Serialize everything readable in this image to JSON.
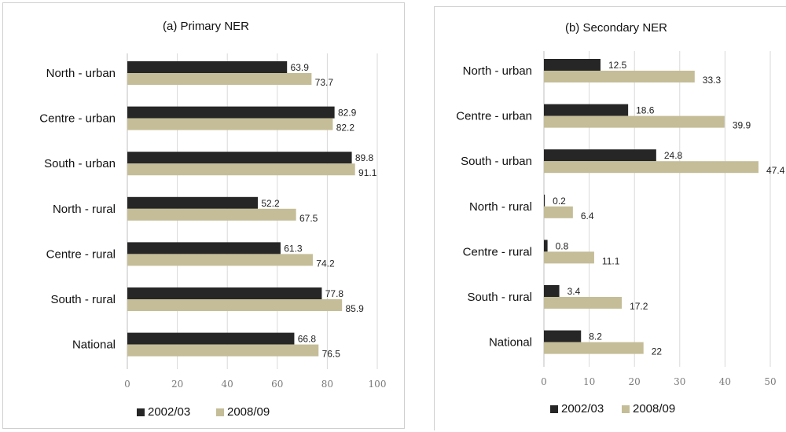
{
  "chart_data": [
    {
      "type": "bar",
      "orientation": "horizontal",
      "title": "(a) Primary NER",
      "categories": [
        "North - urban",
        "Centre - urban",
        "South - urban",
        "North - rural",
        "Centre - rural",
        "South - rural",
        "National"
      ],
      "series": [
        {
          "name": "2002/03",
          "color": "#262626",
          "values": [
            63.9,
            82.9,
            89.8,
            52.2,
            61.3,
            77.8,
            66.8
          ]
        },
        {
          "name": "2008/09",
          "color": "#c4bd97",
          "values": [
            73.7,
            82.2,
            91.1,
            67.5,
            74.2,
            85.9,
            76.5
          ]
        }
      ],
      "xlim": [
        0,
        100
      ],
      "xticks": [
        0,
        20,
        40,
        60,
        80,
        100
      ],
      "grid": "vertical",
      "legend": "bottom"
    },
    {
      "type": "bar",
      "orientation": "horizontal",
      "title": "(b) Secondary NER",
      "categories": [
        "North - urban",
        "Centre - urban",
        "South - urban",
        "North - rural",
        "Centre - rural",
        "South - rural",
        "National"
      ],
      "series": [
        {
          "name": "2002/03",
          "color": "#262626",
          "values": [
            12.5,
            18.6,
            24.8,
            0.2,
            0.8,
            3.4,
            8.2
          ]
        },
        {
          "name": "2008/09",
          "color": "#c4bd97",
          "values": [
            33.3,
            39.9,
            47.4,
            6.4,
            11.1,
            17.2,
            22
          ]
        }
      ],
      "xlim": [
        0,
        50
      ],
      "xticks": [
        0,
        10,
        20,
        30,
        40,
        50
      ],
      "grid": "vertical",
      "legend": "bottom"
    }
  ]
}
